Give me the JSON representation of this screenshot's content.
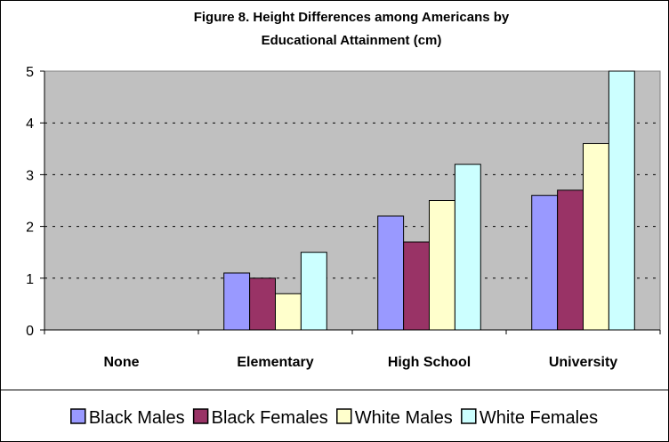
{
  "chart_data": {
    "type": "bar",
    "title": "Figure 8. Height Differences among Americans by Educational Attainment (cm)",
    "title_lines": [
      "Figure 8. Height Differences among Americans by",
      "Educational Attainment (cm)"
    ],
    "categories": [
      "None",
      "Elementary",
      "High School",
      "University"
    ],
    "series": [
      {
        "name": "Black Males",
        "color": "#9999ff",
        "values": [
          0,
          1.1,
          2.2,
          2.6
        ]
      },
      {
        "name": "Black Females",
        "color": "#993366",
        "values": [
          0,
          1.0,
          1.7,
          2.7
        ]
      },
      {
        "name": "White Males",
        "color": "#ffffcc",
        "values": [
          0,
          0.7,
          2.5,
          3.6
        ]
      },
      {
        "name": "White Females",
        "color": "#ccffff",
        "values": [
          0,
          1.5,
          3.2,
          5.0
        ]
      }
    ],
    "ylim": [
      0,
      5
    ],
    "yticks": [
      "0",
      "1",
      "2",
      "3",
      "4",
      "5"
    ],
    "grid": true,
    "plot_background": "#c0c0c0",
    "legend_position": "bottom"
  }
}
